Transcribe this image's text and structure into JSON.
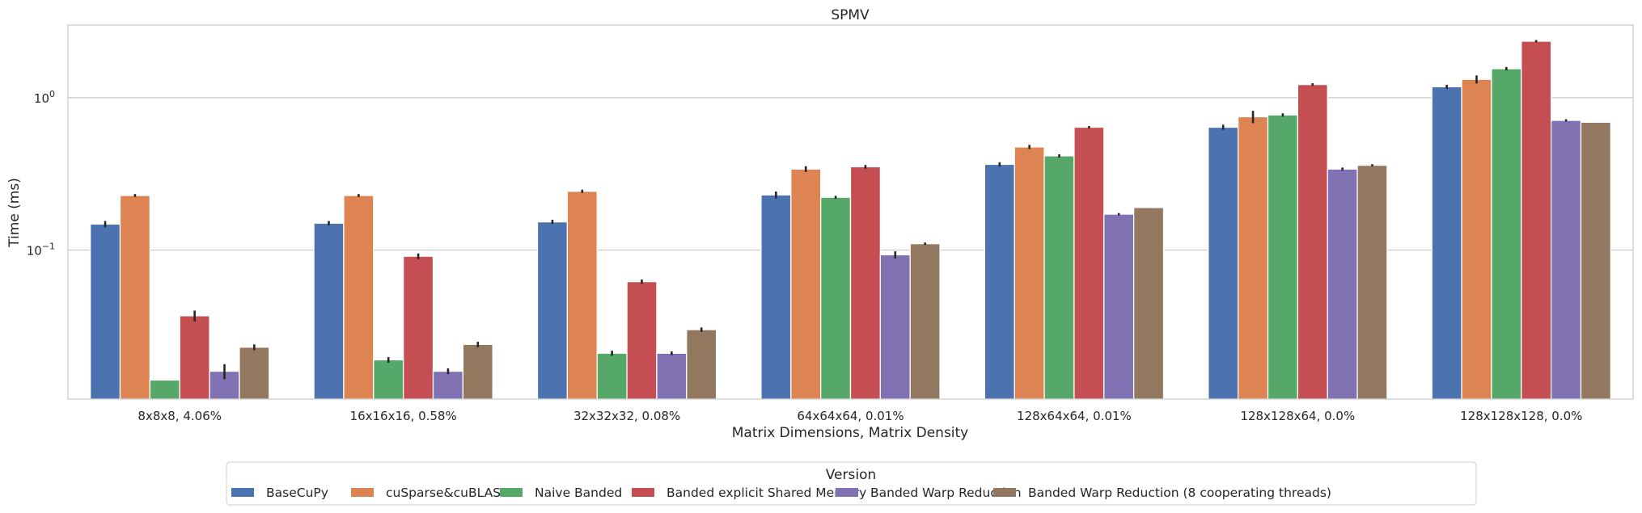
{
  "chart_data": {
    "type": "bar",
    "title": "SPMV",
    "xlabel": "Matrix Dimensions, Matrix Density",
    "ylabel": "Time (ms)",
    "yscale": "log",
    "ylim": [
      0.0105,
      3.0
    ],
    "yticks": [
      {
        "value": 0.1,
        "base": "10",
        "exp": "−1"
      },
      {
        "value": 1,
        "base": "10",
        "exp": "0"
      }
    ],
    "grid": "horizontal",
    "legend": {
      "title": "Version",
      "placement": "bottom-center"
    },
    "categories": [
      "8x8x8, 4.06%",
      "16x16x16, 0.58%",
      "32x32x32, 0.08%",
      "64x64x64, 0.01%",
      "128x64x64, 0.01%",
      "128x128x64, 0.0%",
      "128x128x128, 0.0%"
    ],
    "series": [
      {
        "name": "BaseCuPy",
        "color": "#4c72b0",
        "values": [
          0.148,
          0.15,
          0.153,
          0.23,
          0.365,
          0.64,
          1.18
        ],
        "err": [
          0.007,
          0.005,
          0.005,
          0.012,
          0.012,
          0.025,
          0.035
        ]
      },
      {
        "name": "cuSparse&cuBLAS",
        "color": "#dd8452",
        "values": [
          0.228,
          0.228,
          0.243,
          0.34,
          0.475,
          0.75,
          1.32
        ],
        "err": [
          0.005,
          0.005,
          0.006,
          0.015,
          0.015,
          0.07,
          0.08
        ]
      },
      {
        "name": "Naive Banded",
        "color": "#55a868",
        "values": [
          0.014,
          0.019,
          0.021,
          0.222,
          0.415,
          0.77,
          1.55
        ],
        "err": [
          0.0,
          0.0008,
          0.0008,
          0.005,
          0.01,
          0.02,
          0.04
        ]
      },
      {
        "name": "Banded explicit Shared Memory",
        "color": "#c44e52",
        "values": [
          0.037,
          0.091,
          0.062,
          0.352,
          0.64,
          1.22,
          2.35
        ],
        "err": [
          0.003,
          0.004,
          0.002,
          0.01,
          0.012,
          0.025,
          0.04
        ]
      },
      {
        "name": "Banded Warp Reduction",
        "color": "#8172b3",
        "values": [
          0.016,
          0.016,
          0.021,
          0.093,
          0.172,
          0.34,
          0.71
        ],
        "err": [
          0.0018,
          0.0007,
          0.0006,
          0.005,
          0.003,
          0.008,
          0.012
        ]
      },
      {
        "name": "Banded Warp Reduction (8 cooperating threads)",
        "color": "#937860",
        "values": [
          0.023,
          0.024,
          0.03,
          0.11,
          0.19,
          0.36,
          0.69
        ],
        "err": [
          0.001,
          0.001,
          0.001,
          0.002,
          0.0,
          0.006,
          0.0
        ]
      }
    ]
  }
}
